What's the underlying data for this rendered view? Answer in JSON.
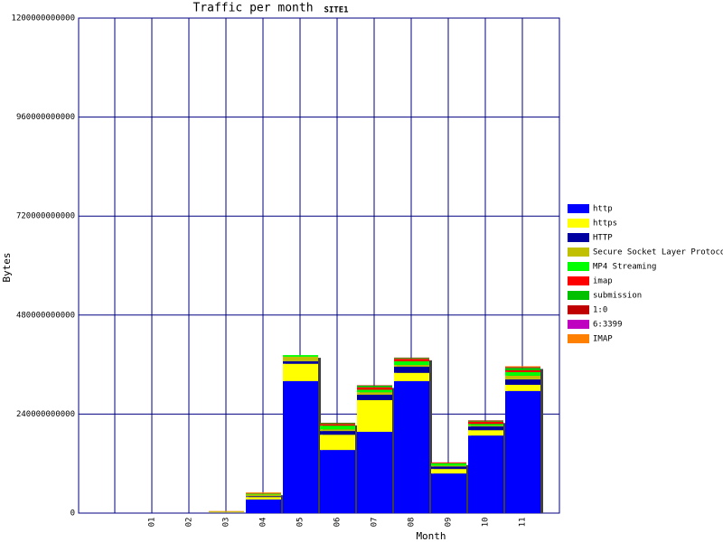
{
  "chart_data": {
    "type": "stacked_bar",
    "title": "Traffic per month",
    "subtitle": "SITE1",
    "x_label": "Month",
    "y_label": "Bytes",
    "categories": [
      "01",
      "02",
      "03",
      "04",
      "05",
      "06",
      "07",
      "08",
      "09",
      "10",
      "11"
    ],
    "ylim": [
      0,
      1200000000000
    ],
    "yticks": [
      0,
      240000000000,
      480000000000,
      720000000000,
      960000000000,
      1200000000000
    ],
    "grid": true,
    "legend": "right",
    "series": [
      {
        "name": "http",
        "color": "#0000ff",
        "values": [
          0,
          0,
          1000000000,
          33000000000,
          320000000000,
          153000000000,
          197000000000,
          320000000000,
          96000000000,
          188000000000,
          296000000000
        ]
      },
      {
        "name": "https",
        "color": "#ffff00",
        "values": [
          0,
          0,
          1000000000,
          6000000000,
          42000000000,
          37000000000,
          77000000000,
          20000000000,
          11000000000,
          13000000000,
          15000000000
        ]
      },
      {
        "name": "HTTP",
        "color": "#0000a0",
        "values": [
          0,
          0,
          0,
          2000000000,
          6000000000,
          9000000000,
          13000000000,
          15000000000,
          6000000000,
          9000000000,
          13000000000
        ]
      },
      {
        "name": "Secure Socket Layer Protocol",
        "color": "#c0c000",
        "values": [
          0,
          0,
          2000000000,
          4000000000,
          11000000000,
          4000000000,
          6000000000,
          4000000000,
          2000000000,
          2000000000,
          9000000000
        ]
      },
      {
        "name": "MP4 Streaming",
        "color": "#00ff00",
        "values": [
          0,
          0,
          0,
          2000000000,
          4000000000,
          9000000000,
          6000000000,
          9000000000,
          6000000000,
          4000000000,
          9000000000
        ]
      },
      {
        "name": "imap",
        "color": "#ff0000",
        "values": [
          0,
          0,
          0,
          1000000000,
          0,
          4000000000,
          6000000000,
          6000000000,
          2000000000,
          6000000000,
          4000000000
        ]
      },
      {
        "name": "submission",
        "color": "#00c000",
        "values": [
          0,
          0,
          0,
          0,
          0,
          2000000000,
          4000000000,
          2000000000,
          0,
          2000000000,
          6000000000
        ]
      },
      {
        "name": "1:0",
        "color": "#c00000",
        "values": [
          0,
          0,
          0,
          0,
          0,
          1000000000,
          1000000000,
          1000000000,
          0,
          1000000000,
          2000000000
        ]
      },
      {
        "name": "6:3399",
        "color": "#c000c0",
        "values": [
          0,
          0,
          0,
          0,
          0,
          0,
          0,
          0,
          0,
          0,
          0
        ]
      },
      {
        "name": "IMAP",
        "color": "#ff8000",
        "values": [
          0,
          0,
          1000000000,
          2000000000,
          0,
          0,
          0,
          0,
          0,
          0,
          2000000000
        ]
      }
    ]
  }
}
